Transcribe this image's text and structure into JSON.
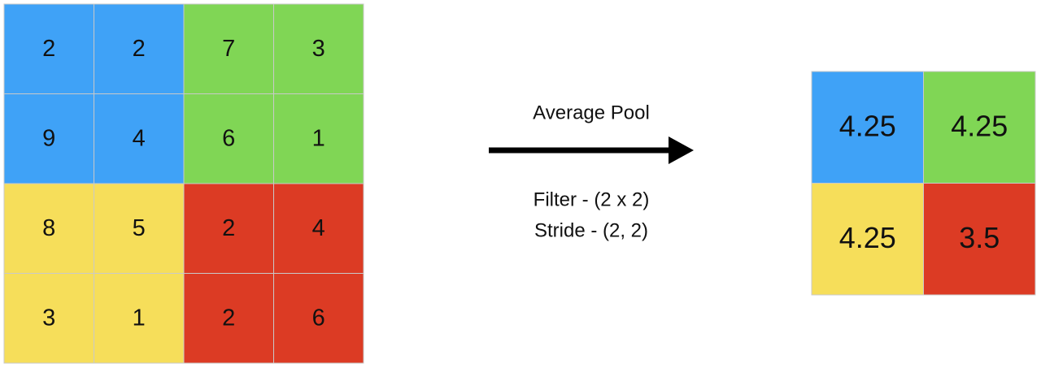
{
  "input": {
    "rows": [
      [
        2,
        2,
        7,
        3
      ],
      [
        9,
        4,
        6,
        1
      ],
      [
        8,
        5,
        2,
        4
      ],
      [
        3,
        1,
        2,
        6
      ]
    ]
  },
  "operation": {
    "title": "Average Pool",
    "filter": "Filter - (2 x 2)",
    "stride": "Stride - (2, 2)"
  },
  "output": {
    "rows": [
      [
        4.25,
        4.25
      ],
      [
        4.25,
        3.5
      ]
    ]
  }
}
